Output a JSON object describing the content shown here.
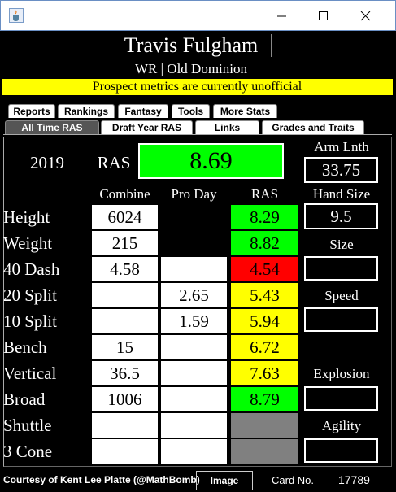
{
  "header": {
    "name": "Travis Fulgham",
    "subtitle": "WR | Old Dominion",
    "banner": "Prospect metrics are currently unofficial"
  },
  "tabs": {
    "row1": [
      "Reports",
      "Rankings",
      "Fantasy",
      "Tools",
      "More Stats"
    ],
    "row2": [
      "All Time RAS",
      "Draft Year RAS",
      "Links",
      "Grades and Traits"
    ],
    "selected": "All Time RAS"
  },
  "summary": {
    "year": "2019",
    "ras_label": "RAS",
    "ras_score": "8.69",
    "ras_color": "#00ff00",
    "arm_length_label": "Arm Lnth",
    "arm_length": "33.75"
  },
  "table": {
    "columns": [
      "Combine",
      "Pro Day",
      "RAS"
    ],
    "rows": [
      {
        "label": "Height",
        "combine": "6024",
        "ras": "8.29",
        "ras_color": "#00ff00"
      },
      {
        "label": "Weight",
        "combine": "215",
        "ras": "8.82",
        "ras_color": "#00ff00"
      },
      {
        "label": "40 Dash",
        "combine": "4.58",
        "pro_day": null,
        "ras": "4.54",
        "ras_color": "#ff0000"
      },
      {
        "label": "20 Split",
        "combine": null,
        "pro_day": "2.65",
        "ras": "5.43",
        "ras_color": "#ffff00"
      },
      {
        "label": "10 Split",
        "combine": null,
        "pro_day": "1.59",
        "ras": "5.94",
        "ras_color": "#ffff00"
      },
      {
        "label": "Bench",
        "combine": "15",
        "pro_day": null,
        "ras": "6.72",
        "ras_color": "#ffff00"
      },
      {
        "label": "Vertical",
        "combine": "36.5",
        "pro_day": null,
        "ras": "7.63",
        "ras_color": "#ffff00"
      },
      {
        "label": "Broad",
        "combine": "1006",
        "pro_day": null,
        "ras": "8.79",
        "ras_color": "#00ff00"
      },
      {
        "label": "Shuttle",
        "combine": null,
        "pro_day": null,
        "ras": null,
        "ras_color": "#808080"
      },
      {
        "label": "3 Cone",
        "combine": null,
        "pro_day": null,
        "ras": null,
        "ras_color": "#808080"
      }
    ]
  },
  "side": {
    "hand_size_label": "Hand Size",
    "hand_size": "9.5",
    "size": "Size",
    "speed": "Speed",
    "explosion": "Explosion",
    "agility": "Agility"
  },
  "footer": {
    "credit": "Courtesy of Kent Lee Platte (@MathBomb)",
    "button": "Image",
    "card_no_label": "Card No.",
    "card_no": "17789"
  }
}
